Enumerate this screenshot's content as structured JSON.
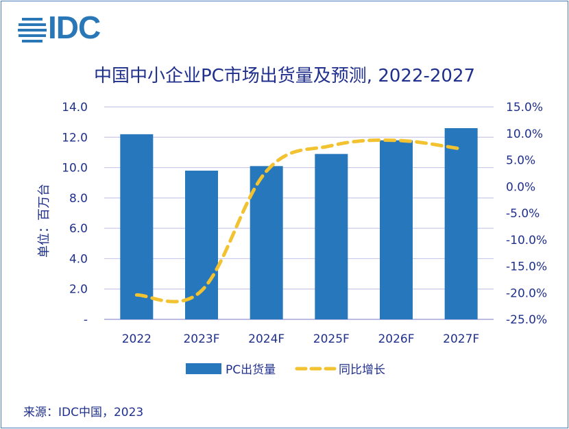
{
  "logo_text": "IDC",
  "chart_data": {
    "type": "bar",
    "title": "中国中小企业PC市场出货量及预测, 2022-2027",
    "categories": [
      "2022",
      "2023F",
      "2024F",
      "2025F",
      "2026F",
      "2027F"
    ],
    "series": [
      {
        "name": "PC出货量",
        "kind": "bar",
        "axis": "left",
        "color": "#2677bb",
        "values": [
          12.2,
          9.8,
          10.1,
          10.9,
          11.8,
          12.6
        ]
      },
      {
        "name": "同比增长",
        "kind": "line",
        "style": "dashed",
        "axis": "right",
        "color": "#f2c230",
        "values": [
          -20.4,
          -19.6,
          2.9,
          7.7,
          8.7,
          7.1
        ]
      }
    ],
    "ylabel": "单位：百万台",
    "ylim": [
      0,
      14
    ],
    "y_ticks": [
      "-",
      "2.0",
      "4.0",
      "6.0",
      "8.0",
      "10.0",
      "12.0",
      "14.0"
    ],
    "y2lim": [
      -25,
      15
    ],
    "y2_ticks": [
      "-25.0%",
      "-20.0%",
      "-15.0%",
      "-10.0%",
      "-5.0%",
      "0.0%",
      "5.0%",
      "10.0%",
      "15.0%"
    ],
    "grid": true,
    "legend_position": "bottom"
  },
  "source": "来源：IDC中国，2023"
}
